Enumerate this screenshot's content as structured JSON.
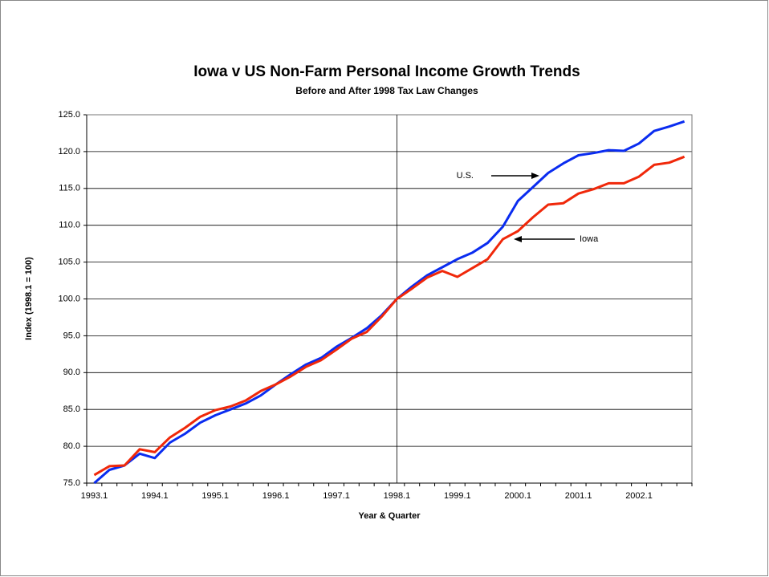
{
  "chart_data": {
    "type": "line",
    "title": "Iowa v US Non-Farm Personal Income Growth Trends",
    "subtitle": "Before and After 1998 Tax Law Changes",
    "x_label": "Year & Quarter",
    "y_label": "Index (1998.1 = 100)",
    "categories": [
      "1993.1",
      null,
      null,
      null,
      "1994.1",
      null,
      null,
      null,
      "1995.1",
      null,
      null,
      null,
      "1996.1",
      null,
      null,
      null,
      "1997.1",
      null,
      null,
      null,
      "1998.1",
      null,
      null,
      null,
      "1999.1",
      null,
      null,
      null,
      "2000.1",
      null,
      null,
      null,
      "2001.1",
      null,
      null,
      null,
      "2002.1",
      null,
      null,
      null
    ],
    "series": [
      {
        "name": "U.S.",
        "color": "#0a2cf0",
        "values": [
          75.0,
          76.8,
          77.4,
          79.0,
          78.4,
          80.5,
          81.7,
          83.2,
          84.2,
          85.0,
          85.8,
          86.9,
          88.4,
          89.8,
          91.1,
          92.0,
          93.5,
          94.7,
          96.0,
          97.8,
          100.0,
          101.7,
          103.2,
          104.3,
          105.4,
          106.3,
          107.6,
          109.8,
          113.3,
          115.2,
          117.1,
          118.4,
          119.5,
          119.8,
          120.2,
          120.1,
          121.1,
          122.8,
          123.4,
          124.1
        ]
      },
      {
        "name": "Iowa",
        "color": "#f0280a",
        "values": [
          76.1,
          77.3,
          77.4,
          79.6,
          79.2,
          81.2,
          82.5,
          84.0,
          84.9,
          85.4,
          86.2,
          87.5,
          88.4,
          89.5,
          90.8,
          91.7,
          93.1,
          94.6,
          95.5,
          97.6,
          100.0,
          101.4,
          102.9,
          103.8,
          103.0,
          104.2,
          105.4,
          108.1,
          109.2,
          111.1,
          112.8,
          113.0,
          114.3,
          114.9,
          115.7,
          115.7,
          116.6,
          118.2,
          118.5,
          119.3
        ]
      }
    ],
    "ylim": [
      75,
      125
    ],
    "yticks": [
      {
        "value": 75,
        "label": "75.0"
      },
      {
        "value": 80,
        "label": "80.0"
      },
      {
        "value": 85,
        "label": "85.0"
      },
      {
        "value": 90,
        "label": "90.0"
      },
      {
        "value": 95,
        "label": "95.0"
      },
      {
        "value": 100,
        "label": "100.0"
      },
      {
        "value": 105,
        "label": "105.0"
      },
      {
        "value": 110,
        "label": "110.0"
      },
      {
        "value": 115,
        "label": "115.0"
      },
      {
        "value": 120,
        "label": "120.0"
      },
      {
        "value": 125,
        "label": "125.0"
      }
    ],
    "grid": true
  }
}
